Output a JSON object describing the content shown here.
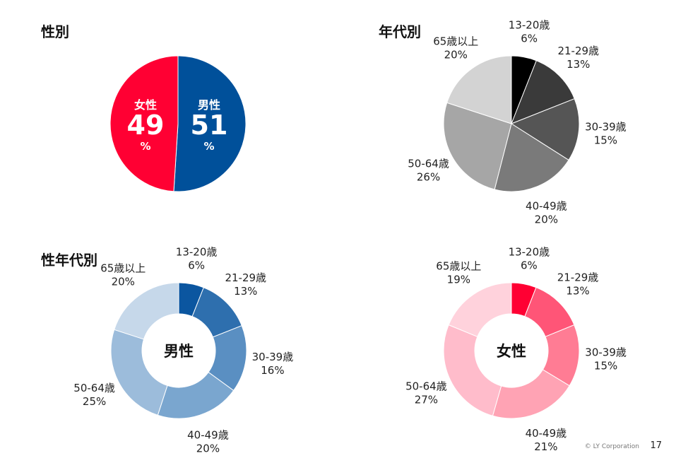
{
  "chart_data": [
    {
      "type": "pie",
      "title": "性別",
      "categories": [
        "男性",
        "女性"
      ],
      "values": [
        51,
        49
      ],
      "unit": "%",
      "colors": [
        "#00509a",
        "#ff0033"
      ]
    },
    {
      "type": "pie",
      "title": "年代別",
      "categories": [
        "13-20歳",
        "21-29歳",
        "30-39歳",
        "40-49歳",
        "50-64歳",
        "65歳以上"
      ],
      "values": [
        6,
        13,
        15,
        20,
        26,
        20
      ],
      "colors": [
        "#000000",
        "#3a3a3a",
        "#555555",
        "#7a7a7a",
        "#a6a6a6",
        "#d3d3d3"
      ]
    },
    {
      "type": "pie",
      "title": "性年代別",
      "center_label": "男性",
      "categories": [
        "13-20歳",
        "21-29歳",
        "30-39歳",
        "40-49歳",
        "50-64歳",
        "65歳以上"
      ],
      "values": [
        6,
        13,
        16,
        20,
        25,
        20
      ],
      "colors": [
        "#0b56a0",
        "#2e6fae",
        "#5a8fc2",
        "#7aa6cf",
        "#9cbcdb",
        "#c6d8ea"
      ]
    },
    {
      "type": "pie",
      "title": "",
      "center_label": "女性",
      "categories": [
        "13-20歳",
        "21-29歳",
        "30-39歳",
        "40-49歳",
        "50-64歳",
        "65歳以上"
      ],
      "values": [
        6,
        13,
        15,
        21,
        27,
        19
      ],
      "colors": [
        "#ff0033",
        "#ff5577",
        "#ff7c94",
        "#ffa3b4",
        "#ffbccb",
        "#ffd2dc"
      ]
    }
  ],
  "footer": {
    "copyright": "© LY Corporation",
    "page_number": "17"
  }
}
